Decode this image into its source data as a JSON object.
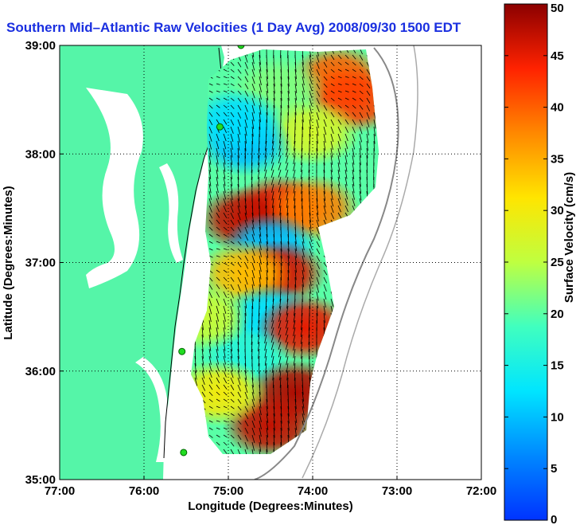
{
  "chart_data": {
    "type": "heatmap",
    "title": "Southern Mid–Atlantic Raw Velocities (1 Day Avg) 2008/09/30 1500 EDT",
    "xlabel": "Longitude (Degrees:Minutes)",
    "ylabel": "Latitude (Degrees:Minutes)",
    "x_ticks": [
      "77:00",
      "76:00",
      "75:00",
      "74:00",
      "73:00",
      "72:00"
    ],
    "y_ticks": [
      "35:00",
      "36:00",
      "37:00",
      "38:00",
      "39:00"
    ],
    "xlim": [
      -77,
      -72
    ],
    "ylim": [
      35,
      39
    ],
    "grid": true,
    "colorbar": {
      "label": "Surface Velocity (cm/s)",
      "range": [
        0,
        50
      ],
      "ticks": [
        "0",
        "5",
        "10",
        "15",
        "20",
        "25",
        "30",
        "35",
        "40",
        "45",
        "50"
      ],
      "colormap": "jet"
    },
    "land_color": "#55f5a8",
    "velocity_regions": [
      {
        "lon": -73.7,
        "lat": 38.7,
        "speed": 40
      },
      {
        "lon": -73.5,
        "lat": 38.5,
        "speed": 42
      },
      {
        "lon": -74.4,
        "lat": 38.6,
        "speed": 22
      },
      {
        "lon": -74.0,
        "lat": 38.2,
        "speed": 27
      },
      {
        "lon": -74.8,
        "lat": 38.1,
        "speed": 10
      },
      {
        "lon": -74.9,
        "lat": 38.3,
        "speed": 12
      },
      {
        "lon": -74.4,
        "lat": 37.5,
        "speed": 45
      },
      {
        "lon": -74.8,
        "lat": 37.4,
        "speed": 47
      },
      {
        "lon": -74.0,
        "lat": 37.5,
        "speed": 38
      },
      {
        "lon": -74.5,
        "lat": 37.15,
        "speed": 10
      },
      {
        "lon": -74.4,
        "lat": 36.9,
        "speed": 46
      },
      {
        "lon": -74.8,
        "lat": 36.9,
        "speed": 34
      },
      {
        "lon": -74.5,
        "lat": 36.5,
        "speed": 12
      },
      {
        "lon": -74.1,
        "lat": 36.4,
        "speed": 45
      },
      {
        "lon": -74.8,
        "lat": 36.1,
        "speed": 16
      },
      {
        "lon": -74.2,
        "lat": 35.8,
        "speed": 48
      },
      {
        "lon": -74.5,
        "lat": 35.5,
        "speed": 47
      },
      {
        "lon": -75.1,
        "lat": 35.8,
        "speed": 30
      },
      {
        "lon": -75.3,
        "lat": 36.5,
        "speed": 26
      }
    ]
  }
}
